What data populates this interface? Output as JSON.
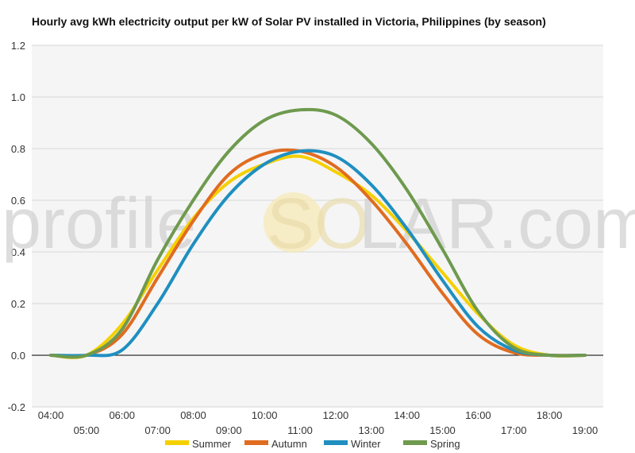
{
  "chart_data": {
    "type": "line",
    "title": "Hourly avg kWh electricity output per kW of Solar PV installed in Victoria, Philippines (by season)",
    "xlabel": "",
    "ylabel": "",
    "x": [
      "04:00",
      "05:00",
      "06:00",
      "07:00",
      "08:00",
      "09:00",
      "10:00",
      "11:00",
      "12:00",
      "13:00",
      "14:00",
      "15:00",
      "16:00",
      "17:00",
      "18:00",
      "19:00"
    ],
    "ylim": [
      -0.2,
      1.2
    ],
    "yticks": [
      "-0.2",
      "0.0",
      "0.2",
      "0.4",
      "0.6",
      "0.8",
      "1.0",
      "1.2"
    ],
    "grid": true,
    "legend_position": "bottom",
    "series": [
      {
        "name": "Summer",
        "color": "#f5d000",
        "values": [
          0.0,
          0.0,
          0.12,
          0.33,
          0.53,
          0.67,
          0.74,
          0.77,
          0.71,
          0.62,
          0.48,
          0.32,
          0.16,
          0.04,
          0.0,
          0.0
        ]
      },
      {
        "name": "Autumn",
        "color": "#e06c20",
        "values": [
          0.0,
          0.0,
          0.08,
          0.3,
          0.52,
          0.7,
          0.78,
          0.79,
          0.73,
          0.6,
          0.43,
          0.24,
          0.08,
          0.01,
          0.0,
          0.0
        ]
      },
      {
        "name": "Winter",
        "color": "#1f8fc0",
        "values": [
          0.0,
          0.0,
          0.02,
          0.2,
          0.43,
          0.62,
          0.74,
          0.79,
          0.77,
          0.66,
          0.49,
          0.29,
          0.11,
          0.02,
          0.0,
          0.0
        ]
      },
      {
        "name": "Spring",
        "color": "#6e9a4e",
        "values": [
          0.0,
          0.0,
          0.1,
          0.37,
          0.6,
          0.79,
          0.91,
          0.95,
          0.93,
          0.82,
          0.64,
          0.41,
          0.17,
          0.03,
          0.0,
          0.0
        ]
      }
    ]
  },
  "watermark": {
    "text_left": "profile",
    "text_right": "LAR.com",
    "sun_letter": "SO"
  }
}
